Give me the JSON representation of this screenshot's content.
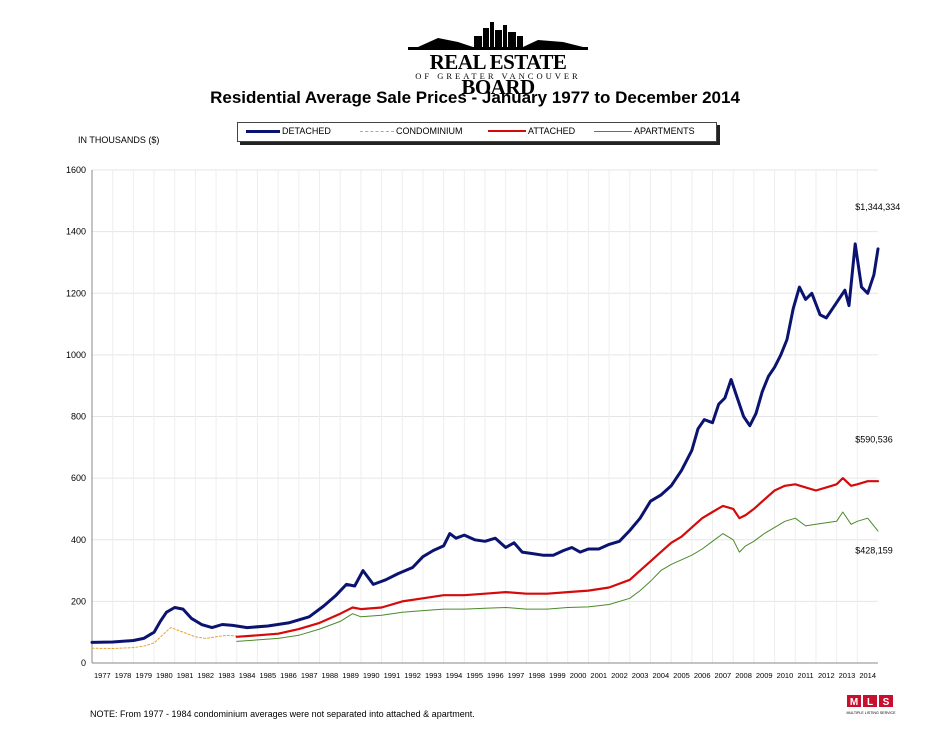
{
  "brand": {
    "name": "REAL ESTATE BOARD",
    "sub": "OF GREATER VANCOUVER",
    "mls_logo": "MLS",
    "mls_tagline": "MULTIPLE LISTING SERVICE"
  },
  "chart_data": {
    "type": "line",
    "title": "Residential Average Sale Prices  -  January 1977 to December 2014",
    "ylabel": "IN THOUSANDS ($)",
    "xlabel": "",
    "ylim": [
      0,
      1600
    ],
    "yticks": [
      0,
      200,
      400,
      600,
      800,
      1000,
      1200,
      1400,
      1600
    ],
    "xlim": [
      1977,
      2015
    ],
    "xticks": [
      "1977",
      "1978",
      "1979",
      "1980",
      "1981",
      "1982",
      "1983",
      "1984",
      "1985",
      "1986",
      "1987",
      "1988",
      "1989",
      "1990",
      "1991",
      "1992",
      "1993",
      "1994",
      "1995",
      "1996",
      "1997",
      "1998",
      "1999",
      "2000",
      "2001",
      "2002",
      "2003",
      "2004",
      "2005",
      "2006",
      "2007",
      "2008",
      "2009",
      "2010",
      "2011",
      "2012",
      "2013",
      "2014"
    ],
    "grid": true,
    "legend_position": "top",
    "series": [
      {
        "name": "DETACHED",
        "color": "#0a1470",
        "dash": "",
        "width": 3,
        "x": [
          1977,
          1978,
          1979,
          1979.5,
          1980,
          1980.3,
          1980.6,
          1981,
          1981.4,
          1981.8,
          1982.3,
          1982.8,
          1983.3,
          1983.8,
          1984.5,
          1985.5,
          1986.5,
          1987.5,
          1988.2,
          1988.8,
          1989.3,
          1989.7,
          1990.1,
          1990.6,
          1991.2,
          1991.8,
          1992.5,
          1993,
          1993.5,
          1994,
          1994.3,
          1994.6,
          1995,
          1995.5,
          1996,
          1996.5,
          1997,
          1997.4,
          1997.8,
          1998.3,
          1998.8,
          1999.3,
          1999.8,
          2000.2,
          2000.6,
          2001,
          2001.5,
          2002,
          2002.5,
          2003,
          2003.5,
          2004,
          2004.5,
          2005,
          2005.5,
          2006,
          2006.3,
          2006.6,
          2007,
          2007.3,
          2007.6,
          2007.9,
          2008.2,
          2008.5,
          2008.8,
          2009.1,
          2009.4,
          2009.7,
          2010,
          2010.3,
          2010.6,
          2010.9,
          2011.2,
          2011.5,
          2011.8,
          2012.2,
          2012.5,
          2012.8,
          2013.1,
          2013.4,
          2013.6,
          2013.9,
          2014.2,
          2014.5,
          2014.8,
          2015
        ],
        "y": [
          67,
          68,
          73,
          80,
          100,
          135,
          165,
          180,
          175,
          145,
          125,
          115,
          125,
          122,
          115,
          120,
          130,
          150,
          185,
          220,
          255,
          250,
          300,
          255,
          270,
          290,
          310,
          345,
          365,
          380,
          420,
          405,
          415,
          400,
          395,
          405,
          375,
          390,
          360,
          355,
          350,
          350,
          365,
          375,
          360,
          370,
          370,
          385,
          395,
          430,
          470,
          525,
          545,
          575,
          625,
          690,
          760,
          790,
          780,
          840,
          860,
          920,
          860,
          800,
          770,
          810,
          880,
          930,
          960,
          1000,
          1050,
          1150,
          1220,
          1180,
          1200,
          1130,
          1120,
          1150,
          1180,
          1210,
          1160,
          1360,
          1220,
          1200,
          1260,
          1344
        ]
      },
      {
        "name": "CONDOMINIUM",
        "color": "#e8a036",
        "dash": "2,2",
        "width": 1,
        "x": [
          1977,
          1978,
          1979,
          1979.5,
          1980,
          1980.4,
          1980.8,
          1981.2,
          1981.6,
          1982,
          1982.5,
          1983,
          1983.5,
          1984
        ],
        "y": [
          48,
          47,
          50,
          55,
          65,
          90,
          115,
          105,
          95,
          85,
          80,
          85,
          90,
          88
        ]
      },
      {
        "name": "ATTACHED",
        "color": "#d50a0a",
        "dash": "",
        "width": 2.2,
        "x": [
          1984,
          1985,
          1986,
          1987,
          1988,
          1989,
          1989.6,
          1990,
          1991,
          1992,
          1993,
          1994,
          1995,
          1996,
          1997,
          1998,
          1999,
          2000,
          2001,
          2002,
          2003,
          2003.5,
          2004,
          2004.5,
          2005,
          2005.5,
          2006,
          2006.5,
          2007,
          2007.5,
          2008,
          2008.3,
          2008.6,
          2009,
          2009.5,
          2010,
          2010.5,
          2011,
          2011.5,
          2012,
          2012.5,
          2013,
          2013.3,
          2013.7,
          2014,
          2014.5,
          2015
        ],
        "y": [
          85,
          90,
          95,
          110,
          130,
          160,
          180,
          175,
          180,
          200,
          210,
          220,
          220,
          225,
          230,
          225,
          225,
          230,
          235,
          245,
          270,
          300,
          330,
          360,
          390,
          410,
          440,
          470,
          490,
          510,
          500,
          470,
          480,
          500,
          530,
          560,
          575,
          580,
          570,
          560,
          570,
          580,
          600,
          575,
          580,
          590,
          590
        ]
      },
      {
        "name": "APARTMENTS",
        "color": "#4b8a2a",
        "dash": "",
        "width": 1,
        "x": [
          1984,
          1985,
          1986,
          1987,
          1988,
          1989,
          1989.6,
          1990,
          1991,
          1992,
          1993,
          1994,
          1995,
          1996,
          1997,
          1998,
          1999,
          2000,
          2001,
          2002,
          2003,
          2003.5,
          2004,
          2004.5,
          2005,
          2005.5,
          2006,
          2006.5,
          2007,
          2007.5,
          2008,
          2008.3,
          2008.6,
          2009,
          2009.5,
          2010,
          2010.5,
          2011,
          2011.5,
          2012,
          2012.5,
          2013,
          2013.3,
          2013.7,
          2014,
          2014.5,
          2015
        ],
        "y": [
          70,
          75,
          80,
          90,
          110,
          135,
          160,
          150,
          155,
          165,
          170,
          175,
          175,
          178,
          180,
          175,
          175,
          180,
          182,
          190,
          210,
          235,
          265,
          300,
          320,
          335,
          350,
          370,
          395,
          420,
          400,
          360,
          380,
          395,
          420,
          440,
          460,
          470,
          445,
          450,
          455,
          460,
          490,
          450,
          460,
          470,
          428
        ]
      }
    ],
    "annotations": [
      {
        "text": "$1,344,334",
        "x": 2013.9,
        "y": 1470
      },
      {
        "text": "$590,536",
        "x": 2013.9,
        "y": 715
      },
      {
        "text": "$428,159",
        "x": 2013.9,
        "y": 355
      }
    ],
    "note": "NOTE:  From 1977 - 1984 condominium averages were not separated into attached & apartment."
  }
}
